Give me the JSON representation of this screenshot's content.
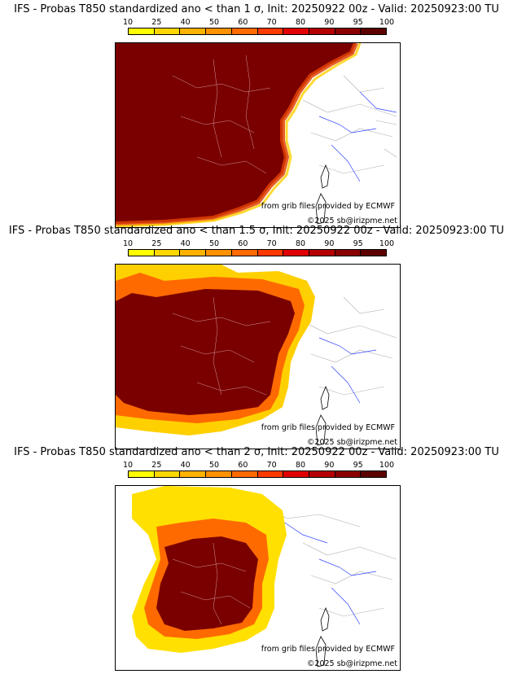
{
  "colorbar": {
    "ticks": [
      "10",
      "25",
      "40",
      "50",
      "60",
      "70",
      "80",
      "90",
      "95",
      "100"
    ],
    "colors": [
      "#ffff00",
      "#ffd700",
      "#ffb300",
      "#ff9200",
      "#ff6a00",
      "#ff3a00",
      "#e00000",
      "#b40000",
      "#8a0000",
      "#5c0000"
    ]
  },
  "colors": {
    "probability_fill": "#7a0000",
    "sea": "#ffffff",
    "coast": "#000000",
    "borders": "#e8c0c0",
    "rivers": "#3040ff",
    "outside_admin": "#b0b0b0"
  },
  "panels": [
    {
      "title": "IFS - Probas T850  standardized ano < than 1 σ, Init: 20250922 00z - Valid: 20250923:00 TU",
      "credit_grib": "from grib files provided by ECMWF",
      "credit_copy": "©2025 sb@irizpme.net"
    },
    {
      "title": "IFS - Probas T850  standardized ano < than 1.5 σ, Init: 20250922 00z - Valid: 20250923:00 TU",
      "credit_grib": "from grib files provided by ECMWF",
      "credit_copy": "©2025 sb@irizpme.net"
    },
    {
      "title": "IFS - Probas T850  standardized ano < than 2 σ, Init: 20250922 00z - Valid: 20250923:00 TU",
      "credit_grib": "from grib files provided by ECMWF",
      "credit_copy": "©2025 sb@irizpme.net"
    }
  ]
}
